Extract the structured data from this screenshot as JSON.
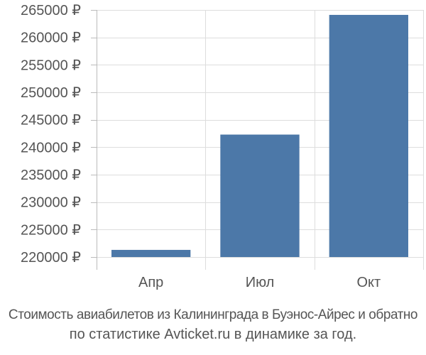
{
  "chart_data": {
    "type": "bar",
    "categories": [
      "Апр",
      "Июл",
      "Окт"
    ],
    "values": [
      221300,
      242300,
      264100
    ],
    "ylim": [
      220000,
      265000
    ],
    "yticks": [
      220000,
      225000,
      230000,
      235000,
      240000,
      245000,
      250000,
      255000,
      260000,
      265000
    ],
    "ytick_labels": [
      "220000 ₽",
      "225000 ₽",
      "230000 ₽",
      "235000 ₽",
      "240000 ₽",
      "245000 ₽",
      "250000 ₽",
      "255000 ₽",
      "260000 ₽",
      "265000 ₽"
    ],
    "grid": true,
    "bar_color": "#4c78a8"
  },
  "caption": {
    "line1": "Стоимость авиабилетов из Калининграда в Буэнос-Айрес и обратно",
    "line2": "по статистике Avticket.ru в динамике за год."
  }
}
